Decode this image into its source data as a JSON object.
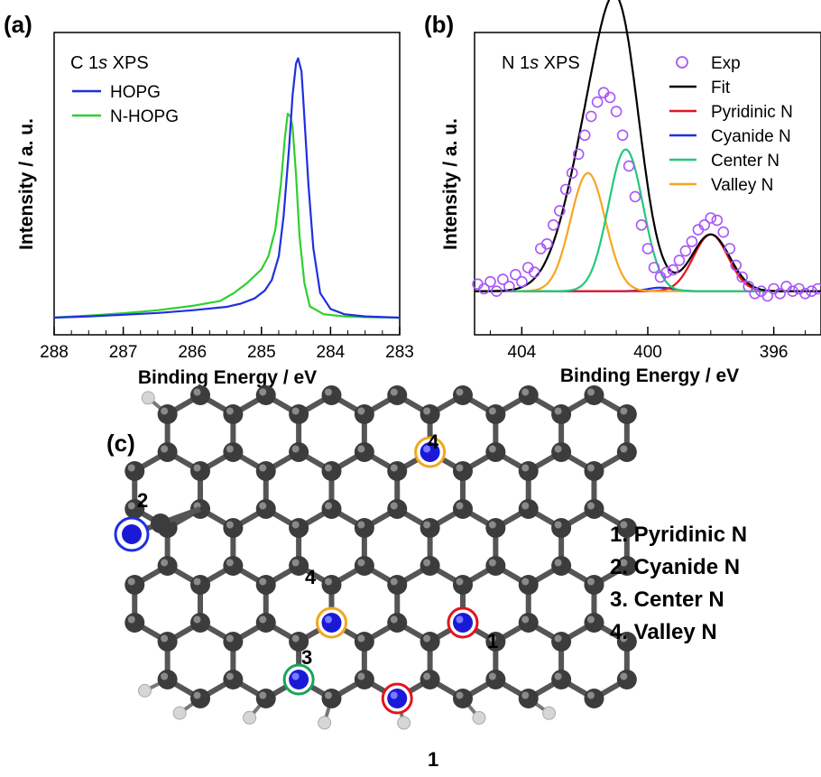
{
  "panels": {
    "a": {
      "letter": "(a)",
      "inset_label": "C 1",
      "inset_label_italic": "s",
      "inset_label_suffix": " XPS"
    },
    "b": {
      "letter": "(b)",
      "inset_label": "N 1",
      "inset_label_italic": "s",
      "inset_label_suffix": " XPS"
    },
    "c": {
      "letter": "(c)"
    }
  },
  "chart_data": [
    {
      "type": "line",
      "panel": "a",
      "xlabel": "Binding Energy / eV",
      "ylabel": "Intensity / a. u.",
      "xlim": [
        288,
        283
      ],
      "x_reversed": true,
      "xticks": [
        288,
        287,
        286,
        285,
        284,
        283
      ],
      "ylim": [
        0,
        1.05
      ],
      "y_ticks_shown": false,
      "legend_position": "top-left",
      "series": [
        {
          "name": "HOPG",
          "color": "#1f2fe0",
          "points": [
            [
              288,
              0.017
            ],
            [
              287.5,
              0.022
            ],
            [
              287,
              0.028
            ],
            [
              286.5,
              0.035
            ],
            [
              286,
              0.045
            ],
            [
              285.5,
              0.058
            ],
            [
              285.3,
              0.07
            ],
            [
              285.1,
              0.09
            ],
            [
              284.95,
              0.12
            ],
            [
              284.85,
              0.16
            ],
            [
              284.75,
              0.25
            ],
            [
              284.68,
              0.4
            ],
            [
              284.6,
              0.66
            ],
            [
              284.55,
              0.86
            ],
            [
              284.5,
              0.98
            ],
            [
              284.47,
              1.0
            ],
            [
              284.42,
              0.95
            ],
            [
              284.38,
              0.78
            ],
            [
              284.32,
              0.52
            ],
            [
              284.25,
              0.28
            ],
            [
              284.15,
              0.11
            ],
            [
              284.0,
              0.05
            ],
            [
              283.8,
              0.03
            ],
            [
              283.5,
              0.022
            ],
            [
              283.0,
              0.017
            ]
          ]
        },
        {
          "name": "N-HOPG",
          "color": "#2fcf2f",
          "points": [
            [
              288,
              0.018
            ],
            [
              287.5,
              0.025
            ],
            [
              287,
              0.034
            ],
            [
              286.5,
              0.045
            ],
            [
              286,
              0.062
            ],
            [
              285.6,
              0.08
            ],
            [
              285.4,
              0.11
            ],
            [
              285.2,
              0.15
            ],
            [
              285.0,
              0.2
            ],
            [
              284.9,
              0.25
            ],
            [
              284.8,
              0.35
            ],
            [
              284.72,
              0.52
            ],
            [
              284.66,
              0.7
            ],
            [
              284.62,
              0.79
            ],
            [
              284.58,
              0.78
            ],
            [
              284.55,
              0.74
            ],
            [
              284.5,
              0.56
            ],
            [
              284.45,
              0.33
            ],
            [
              284.38,
              0.15
            ],
            [
              284.3,
              0.06
            ],
            [
              284.1,
              0.03
            ],
            [
              283.8,
              0.022
            ],
            [
              283.5,
              0.019
            ],
            [
              283.0,
              0.017
            ]
          ]
        }
      ]
    },
    {
      "type": "line",
      "panel": "b",
      "xlabel": "Binding Energy / eV",
      "ylabel": "Intensity / a. u.",
      "xlim": [
        405.5,
        394.5
      ],
      "x_reversed": true,
      "xticks": [
        404,
        400,
        396
      ],
      "ylim": [
        -0.05,
        1.0
      ],
      "y_ticks_shown": false,
      "legend_position": "top-right",
      "series": [
        {
          "name": "Exp",
          "kind": "scatter",
          "color": "#a855f7",
          "points": [
            [
              405.4,
              0.05
            ],
            [
              405.2,
              0.03
            ],
            [
              405.0,
              0.06
            ],
            [
              404.8,
              0.02
            ],
            [
              404.6,
              0.07
            ],
            [
              404.4,
              0.04
            ],
            [
              404.2,
              0.09
            ],
            [
              404.0,
              0.06
            ],
            [
              403.8,
              0.12
            ],
            [
              403.6,
              0.1
            ],
            [
              403.4,
              0.2
            ],
            [
              403.2,
              0.22
            ],
            [
              403.0,
              0.3
            ],
            [
              402.8,
              0.36
            ],
            [
              402.6,
              0.45
            ],
            [
              402.4,
              0.52
            ],
            [
              402.2,
              0.6
            ],
            [
              402.0,
              0.68
            ],
            [
              401.8,
              0.76
            ],
            [
              401.6,
              0.82
            ],
            [
              401.4,
              0.86
            ],
            [
              401.2,
              0.84
            ],
            [
              401.0,
              0.78
            ],
            [
              400.8,
              0.68
            ],
            [
              400.6,
              0.55
            ],
            [
              400.4,
              0.42
            ],
            [
              400.2,
              0.3
            ],
            [
              400.0,
              0.2
            ],
            [
              399.8,
              0.12
            ],
            [
              399.6,
              0.08
            ],
            [
              399.4,
              0.1
            ],
            [
              399.2,
              0.11
            ],
            [
              399.0,
              0.15
            ],
            [
              398.8,
              0.19
            ],
            [
              398.6,
              0.23
            ],
            [
              398.4,
              0.28
            ],
            [
              398.2,
              0.3
            ],
            [
              398.0,
              0.33
            ],
            [
              397.8,
              0.32
            ],
            [
              397.6,
              0.27
            ],
            [
              397.4,
              0.2
            ],
            [
              397.2,
              0.13
            ],
            [
              397.0,
              0.08
            ],
            [
              396.8,
              0.04
            ],
            [
              396.6,
              0.01
            ],
            [
              396.4,
              0.02
            ],
            [
              396.2,
              0.0
            ],
            [
              396.0,
              0.03
            ],
            [
              395.8,
              0.01
            ],
            [
              395.6,
              0.04
            ],
            [
              395.4,
              0.02
            ],
            [
              395.2,
              0.03
            ],
            [
              395.0,
              0.01
            ],
            [
              394.8,
              0.02
            ],
            [
              394.6,
              0.03
            ]
          ]
        },
        {
          "name": "Fit",
          "color": "#000000",
          "peaks": [
            [
              401.5,
              0.82,
              0.9
            ],
            [
              400.8,
              0.58,
              0.6
            ],
            [
              398.0,
              0.24,
              0.6
            ]
          ],
          "baseline": 0.02
        },
        {
          "name": "Pyridinic N",
          "color": "#e3141e",
          "peaks": [
            [
              398.0,
              0.24,
              0.55
            ]
          ],
          "baseline": 0.02
        },
        {
          "name": "Cyanide N",
          "color": "#1f2fe0",
          "peaks": [
            [
              399.6,
              0.015,
              0.4
            ]
          ],
          "baseline": 0.02
        },
        {
          "name": "Center N",
          "color": "#22c97a",
          "peaks": [
            [
              400.7,
              0.6,
              0.55
            ]
          ],
          "baseline": 0.02
        },
        {
          "name": "Valley N",
          "color": "#f5a623",
          "peaks": [
            [
              401.9,
              0.5,
              0.55
            ]
          ],
          "baseline": 0.02
        }
      ]
    }
  ],
  "panel_c": {
    "site_labels": [
      "1",
      "2",
      "3",
      "4"
    ],
    "legend": [
      "1. Pyridinic N",
      "2. Cyanide  N",
      "3. Center N",
      "4. Valley N"
    ],
    "colors": {
      "carbon": "#3c3c3c",
      "hydrogen": "#d6d6d6",
      "nitrogen": "#1a1ad6",
      "pyridinic": "#e3141e",
      "cyanide": "#1f2fe0",
      "center": "#1aa35a",
      "valley": "#f0a81c"
    }
  }
}
